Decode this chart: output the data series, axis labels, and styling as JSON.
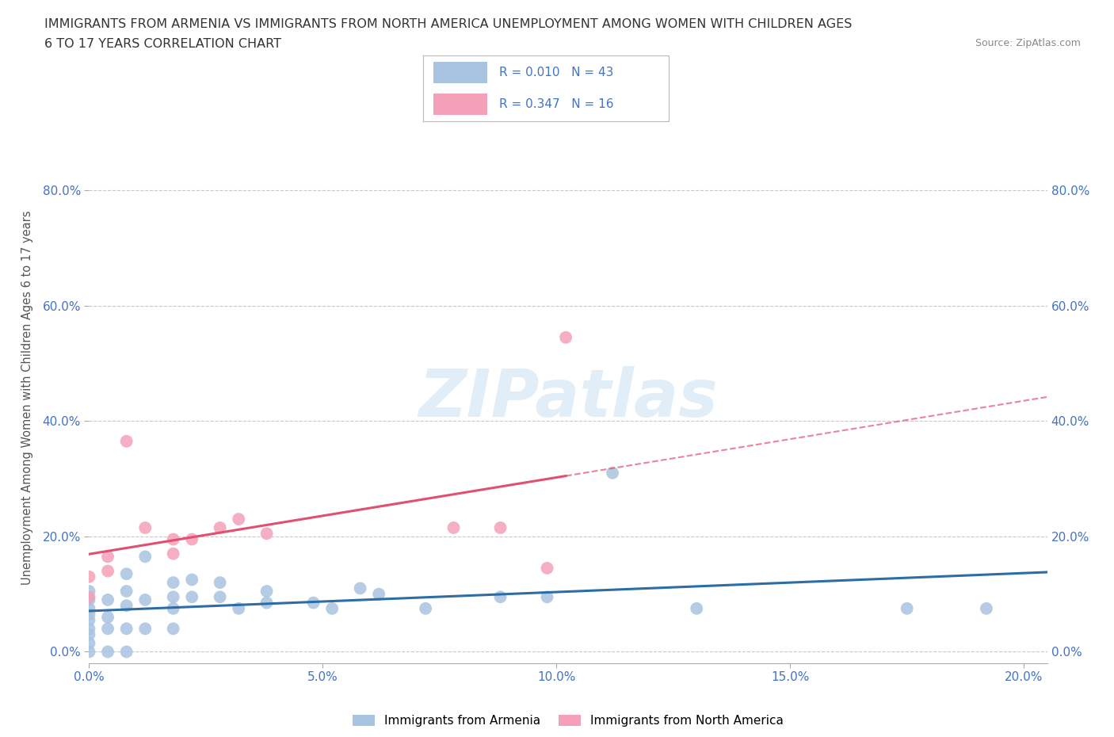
{
  "title_line1": "IMMIGRANTS FROM ARMENIA VS IMMIGRANTS FROM NORTH AMERICA UNEMPLOYMENT AMONG WOMEN WITH CHILDREN AGES",
  "title_line2": "6 TO 17 YEARS CORRELATION CHART",
  "source": "Source: ZipAtlas.com",
  "ylabel": "Unemployment Among Women with Children Ages 6 to 17 years",
  "xlim": [
    0.0,
    0.205
  ],
  "ylim": [
    -0.02,
    0.9
  ],
  "xticklabels": [
    "0.0%",
    "5.0%",
    "10.0%",
    "15.0%",
    "20.0%"
  ],
  "xtick_vals": [
    0.0,
    0.05,
    0.1,
    0.15,
    0.2
  ],
  "yticklabels": [
    "0.0%",
    "20.0%",
    "40.0%",
    "60.0%",
    "80.0%"
  ],
  "ytick_vals": [
    0.0,
    0.2,
    0.4,
    0.6,
    0.8
  ],
  "grid_color": "#c8c8c8",
  "background_color": "#ffffff",
  "watermark": "ZIPatlas",
  "armenia_R": 0.01,
  "armenia_N": 43,
  "armenia_color": "#a8c4e0",
  "armenia_line_color": "#2e6da4",
  "north_america_R": 0.347,
  "north_america_N": 16,
  "north_america_color": "#f4a0b8",
  "north_america_line_color": "#e05070",
  "armenia_x": [
    0.0,
    0.0,
    0.0,
    0.0,
    0.0,
    0.0,
    0.0,
    0.0,
    0.0,
    0.004,
    0.004,
    0.004,
    0.004,
    0.008,
    0.008,
    0.008,
    0.008,
    0.008,
    0.012,
    0.012,
    0.012,
    0.018,
    0.018,
    0.018,
    0.018,
    0.022,
    0.022,
    0.028,
    0.028,
    0.032,
    0.038,
    0.038,
    0.048,
    0.052,
    0.058,
    0.062,
    0.072,
    0.088,
    0.098,
    0.112,
    0.13,
    0.175,
    0.192
  ],
  "armenia_y": [
    0.0,
    0.015,
    0.03,
    0.04,
    0.055,
    0.065,
    0.075,
    0.09,
    0.105,
    0.0,
    0.04,
    0.06,
    0.09,
    0.0,
    0.04,
    0.08,
    0.105,
    0.135,
    0.04,
    0.09,
    0.165,
    0.04,
    0.075,
    0.095,
    0.12,
    0.095,
    0.125,
    0.095,
    0.12,
    0.075,
    0.085,
    0.105,
    0.085,
    0.075,
    0.11,
    0.1,
    0.075,
    0.095,
    0.095,
    0.31,
    0.075,
    0.075,
    0.075
  ],
  "north_america_x": [
    0.0,
    0.0,
    0.004,
    0.004,
    0.008,
    0.012,
    0.018,
    0.018,
    0.022,
    0.028,
    0.032,
    0.038,
    0.078,
    0.088,
    0.098,
    0.102
  ],
  "north_america_y": [
    0.095,
    0.13,
    0.14,
    0.165,
    0.365,
    0.215,
    0.17,
    0.195,
    0.195,
    0.215,
    0.23,
    0.205,
    0.215,
    0.215,
    0.145,
    0.545
  ],
  "legend_items": [
    {
      "label": "Immigrants from Armenia",
      "color": "#a8c4e0"
    },
    {
      "label": "Immigrants from North America",
      "color": "#f4a0b8"
    }
  ]
}
